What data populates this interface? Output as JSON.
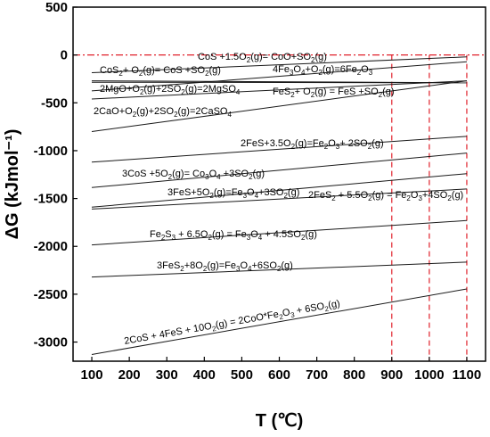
{
  "chart_data": {
    "type": "line",
    "xlabel": "T (℃)",
    "ylabel": "ΔG (kJmol⁻¹)",
    "xlim": [
      50,
      1150
    ],
    "ylim": [
      -3200,
      500
    ],
    "xticks": [
      100,
      200,
      300,
      400,
      500,
      600,
      700,
      800,
      900,
      1000,
      1100
    ],
    "yticks": [
      500,
      0,
      -500,
      -1000,
      -1500,
      -2000,
      -2500,
      -3000
    ],
    "grid": false,
    "reference_lines": {
      "horizontal": [
        0
      ],
      "vertical": [
        900,
        1000,
        1100
      ],
      "color": "#e0202a"
    },
    "series": [
      {
        "x": [
          100,
          1100
        ],
        "y": [
          -185,
          -20
        ]
      },
      {
        "x": [
          100,
          1100
        ],
        "y": [
          -270,
          -290
        ]
      },
      {
        "x": [
          100,
          1100
        ],
        "y": [
          -375,
          -70
        ]
      },
      {
        "x": [
          100,
          1100
        ],
        "y": [
          -285,
          -290
        ]
      },
      {
        "x": [
          100,
          1100
        ],
        "y": [
          -460,
          -270
        ]
      },
      {
        "x": [
          100,
          1100
        ],
        "y": [
          -800,
          -270
        ]
      },
      {
        "x": [
          100,
          1100
        ],
        "y": [
          -1120,
          -850
        ]
      },
      {
        "x": [
          100,
          1100
        ],
        "y": [
          -1385,
          -1025
        ]
      },
      {
        "x": [
          100,
          1100
        ],
        "y": [
          -1590,
          -1240
        ]
      },
      {
        "x": [
          100,
          1100
        ],
        "y": [
          -1610,
          -1400
        ]
      },
      {
        "x": [
          100,
          1100
        ],
        "y": [
          -1985,
          -1730
        ]
      },
      {
        "x": [
          100,
          1100
        ],
        "y": [
          -2320,
          -2165
        ]
      },
      {
        "x": [
          100,
          1100
        ],
        "y": [
          -3130,
          -2445
        ]
      }
    ],
    "annotations": [
      {
        "segments": [
          [
            "CoS +1.5O"
          ],
          [
            "2",
            "sub"
          ],
          [
            "(g)= CoO+SO"
          ],
          [
            "2",
            "sub"
          ],
          [
            "(g)"
          ]
        ]
      },
      {
        "segments": [
          [
            "CoS"
          ],
          [
            "2",
            "sub"
          ],
          [
            "+ O"
          ],
          [
            "2",
            "sub"
          ],
          [
            "(g)= CoS +SO"
          ],
          [
            "2",
            "sub"
          ],
          [
            "(g)"
          ]
        ]
      },
      {
        "segments": [
          [
            "4Fe"
          ],
          [
            "3",
            "sub"
          ],
          [
            "O"
          ],
          [
            "4",
            "sub"
          ],
          [
            "+O"
          ],
          [
            "2",
            "sub"
          ],
          [
            "(g)=6Fe"
          ],
          [
            "2",
            "sub"
          ],
          [
            "O"
          ],
          [
            "3",
            "sub"
          ]
        ]
      },
      {
        "segments": [
          [
            "2MgO+O"
          ],
          [
            "2",
            "sub"
          ],
          [
            "(g)+2SO"
          ],
          [
            "2",
            "sub"
          ],
          [
            "(g)=2MgSO"
          ],
          [
            "4",
            "sub"
          ]
        ]
      },
      {
        "segments": [
          [
            "FeS"
          ],
          [
            "2",
            "sub"
          ],
          [
            "+ O"
          ],
          [
            "2",
            "sub"
          ],
          [
            "(g) = FeS +SO"
          ],
          [
            "2",
            "sub"
          ],
          [
            "(g)"
          ]
        ]
      },
      {
        "segments": [
          [
            "2CaO+O"
          ],
          [
            "2",
            "sub"
          ],
          [
            "(g)+2SO"
          ],
          [
            "2",
            "sub"
          ],
          [
            "(g)=2CaSO"
          ],
          [
            "4",
            "sub"
          ]
        ]
      },
      {
        "segments": [
          [
            "2FeS+3.5O"
          ],
          [
            "2",
            "sub"
          ],
          [
            "(g)=Fe"
          ],
          [
            "2",
            "sub"
          ],
          [
            "O"
          ],
          [
            "3",
            "sub"
          ],
          [
            "+ 2SO"
          ],
          [
            "2",
            "sub"
          ],
          [
            "(g)"
          ]
        ]
      },
      {
        "segments": [
          [
            "3CoS +5O"
          ],
          [
            "2",
            "sub"
          ],
          [
            "(g)= Co"
          ],
          [
            "3",
            "sub"
          ],
          [
            "O"
          ],
          [
            "4",
            "sub"
          ],
          [
            " +3SO"
          ],
          [
            "2",
            "sub"
          ],
          [
            "(g)"
          ]
        ]
      },
      {
        "segments": [
          [
            "3FeS+5O"
          ],
          [
            "2",
            "sub"
          ],
          [
            "(g)=Fe"
          ],
          [
            "3",
            "sub"
          ],
          [
            "O"
          ],
          [
            "4",
            "sub"
          ],
          [
            "+3SO"
          ],
          [
            "2",
            "sub"
          ],
          [
            "(g)"
          ]
        ]
      },
      {
        "segments": [
          [
            "2FeS"
          ],
          [
            "2",
            "sub"
          ],
          [
            " + 5.5O"
          ],
          [
            "2",
            "sub"
          ],
          [
            "(g) = Fe"
          ],
          [
            "2",
            "sub"
          ],
          [
            "O"
          ],
          [
            "3",
            "sub"
          ],
          [
            "+4SO"
          ],
          [
            "2",
            "sub"
          ],
          [
            "(g)"
          ]
        ]
      },
      {
        "segments": [
          [
            "Fe"
          ],
          [
            "2",
            "sub"
          ],
          [
            "S"
          ],
          [
            "3",
            "sub"
          ],
          [
            " + 6.5O"
          ],
          [
            "2",
            "sub"
          ],
          [
            "(g) = Fe"
          ],
          [
            "3",
            "sub"
          ],
          [
            "O"
          ],
          [
            "4",
            "sub"
          ],
          [
            " + 4.5SO"
          ],
          [
            "2",
            "sub"
          ],
          [
            "(g)"
          ]
        ]
      },
      {
        "segments": [
          [
            "3FeS"
          ],
          [
            "2",
            "sub"
          ],
          [
            "+8O"
          ],
          [
            "2",
            "sub"
          ],
          [
            "(g)=Fe"
          ],
          [
            "3",
            "sub"
          ],
          [
            "O"
          ],
          [
            "4",
            "sub"
          ],
          [
            "+6SO"
          ],
          [
            "2",
            "sub"
          ],
          [
            "(g)"
          ]
        ]
      },
      {
        "segments": [
          [
            "2CoS + 4FeS + 10O"
          ],
          [
            "2",
            "sub"
          ],
          [
            "(g) = 2CoO*Fe"
          ],
          [
            "2",
            "sub"
          ],
          [
            "O"
          ],
          [
            "3",
            "sub"
          ],
          [
            " + 6SO"
          ],
          [
            "2",
            "sub"
          ],
          [
            "(g)"
          ]
        ]
      }
    ]
  }
}
